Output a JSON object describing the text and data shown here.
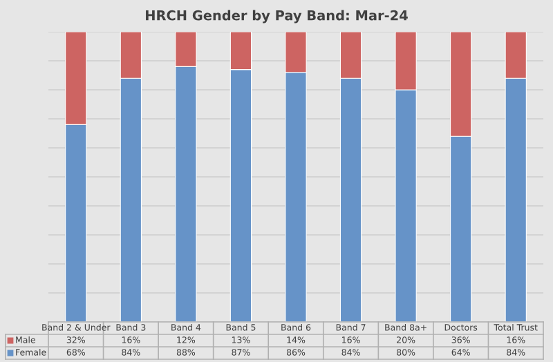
{
  "chart_data": {
    "type": "bar",
    "title": "HRCH Gender by Pay Band: Mar-24",
    "stacked": true,
    "categories": [
      "Band 2 & Under",
      "Band 3",
      "Band 4",
      "Band 5",
      "Band 6",
      "Band 7",
      "Band 8a+",
      "Doctors",
      "Total Trust"
    ],
    "series": [
      {
        "name": "Female",
        "color": "#6693c8",
        "values": [
          68,
          84,
          88,
          87,
          86,
          84,
          80,
          64,
          84
        ],
        "value_labels": [
          "68%",
          "84%",
          "88%",
          "87%",
          "86%",
          "84%",
          "80%",
          "64%",
          "84%"
        ]
      },
      {
        "name": "Male",
        "color": "#cd6462",
        "values": [
          32,
          16,
          12,
          13,
          14,
          16,
          20,
          36,
          16
        ],
        "value_labels": [
          "32%",
          "16%",
          "12%",
          "13%",
          "14%",
          "16%",
          "20%",
          "36%",
          "16%"
        ]
      }
    ],
    "ylim": [
      0,
      100
    ],
    "yticks": [
      {
        "value": 0,
        "label": null
      },
      {
        "value": 10,
        "label": null
      },
      {
        "value": 20,
        "label": null
      },
      {
        "value": 30,
        "label": null
      },
      {
        "value": 40,
        "label": null
      },
      {
        "value": 50,
        "label": null
      },
      {
        "value": 60,
        "label": null
      },
      {
        "value": 70,
        "label": null
      },
      {
        "value": 80,
        "label": null
      },
      {
        "value": 90,
        "label": null
      },
      {
        "value": 100,
        "label": null
      }
    ],
    "grid": "y",
    "legend": "bottom"
  }
}
